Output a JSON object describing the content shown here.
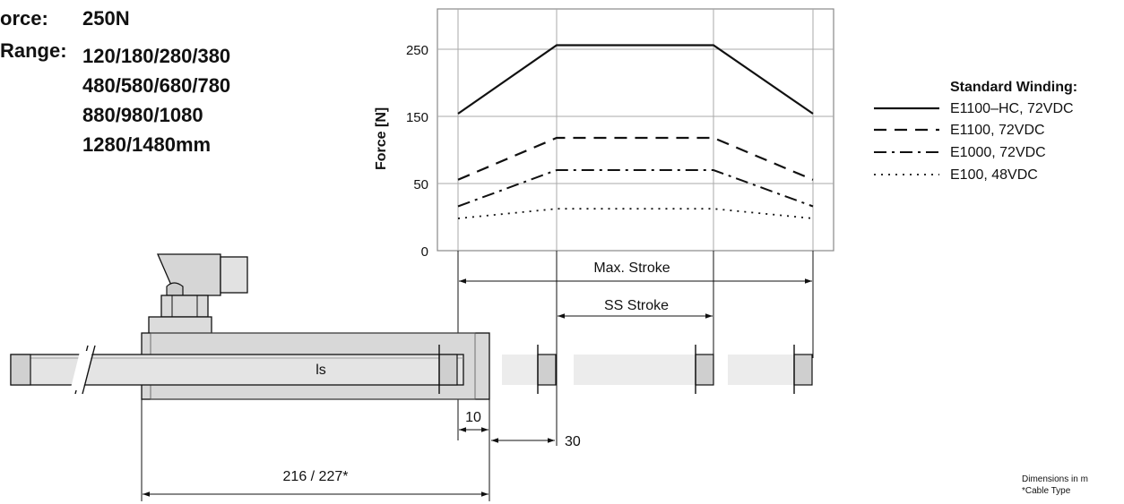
{
  "specs": {
    "force_label": "orce:",
    "force_value": "250N",
    "range_label": "Range:",
    "range_lines": [
      "120/180/280/380",
      "480/580/680/780",
      "880/980/1080",
      "1280/1480mm"
    ]
  },
  "chart_data": {
    "type": "line",
    "ylabel": "Force [N]",
    "yticks": [
      0,
      50,
      150,
      250
    ],
    "ylim": [
      0,
      300
    ],
    "x_positions": [
      "Max. Stroke start",
      "SS Stroke start",
      "SS Stroke end",
      "Max. Stroke end"
    ],
    "series": [
      {
        "name": "E1100–HC, 72VDC",
        "values": [
          170,
          255,
          255,
          170
        ],
        "dash": "solid"
      },
      {
        "name": "E1100, 72VDC",
        "values": [
          88,
          140,
          140,
          88
        ],
        "dash": "dashed"
      },
      {
        "name": "E1000, 72VDC",
        "values": [
          55,
          100,
          100,
          55
        ],
        "dash": "dash-dot"
      },
      {
        "name": "E100, 48VDC",
        "values": [
          40,
          52,
          52,
          40
        ],
        "dash": "dotted"
      }
    ],
    "legend_title": "Standard Winding:",
    "legend_position": "right"
  },
  "dimensions": {
    "max_stroke": "Max. Stroke",
    "ss_stroke": "SS Stroke",
    "ls": "ls",
    "dim_10": "10",
    "dim_30": "30",
    "dim_total": "216 / 227*"
  },
  "notes": {
    "line1": "Dimensions in m",
    "line2": "*Cable Type"
  },
  "colors": {
    "ink": "#111111",
    "body_fill": "#d9d9d9",
    "grid": "#9a9a9a"
  }
}
